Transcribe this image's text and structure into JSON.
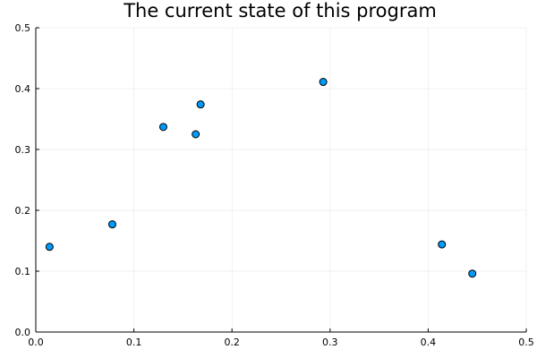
{
  "chart_data": {
    "type": "scatter",
    "title": "The current state of this program",
    "xlabel": "",
    "ylabel": "",
    "xlim": [
      0,
      0.5
    ],
    "ylim": [
      0,
      0.5
    ],
    "x_ticks": [
      0,
      0.1,
      0.2,
      0.3,
      0.4,
      0.5
    ],
    "y_ticks": [
      0,
      0.1,
      0.2,
      0.3,
      0.4,
      0.5
    ],
    "x_tick_labels": [
      "0.0",
      "0.1",
      "0.2",
      "0.3",
      "0.4",
      "0.5"
    ],
    "y_tick_labels": [
      "0.0",
      "0.1",
      "0.2",
      "0.3",
      "0.4",
      "0.5"
    ],
    "grid": true,
    "legend": "none",
    "marker_color": "#009AFA",
    "series": [
      {
        "points": [
          {
            "x": 0.014,
            "y": 0.14
          },
          {
            "x": 0.078,
            "y": 0.177
          },
          {
            "x": 0.13,
            "y": 0.337
          },
          {
            "x": 0.163,
            "y": 0.325
          },
          {
            "x": 0.168,
            "y": 0.374
          },
          {
            "x": 0.293,
            "y": 0.411
          },
          {
            "x": 0.414,
            "y": 0.144
          },
          {
            "x": 0.445,
            "y": 0.096
          }
        ]
      }
    ]
  }
}
